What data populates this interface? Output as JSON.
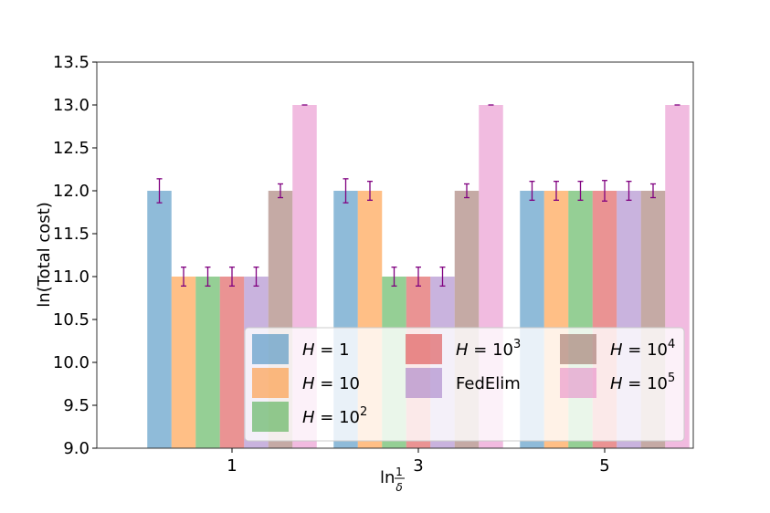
{
  "chart_data": {
    "type": "bar",
    "title": "",
    "xlabel": "ln 1/δ",
    "xlabel_parts": {
      "prefix": "ln",
      "numerator": "1",
      "denominator": "δ"
    },
    "ylabel": "ln(Total cost)",
    "ylim": [
      9.0,
      13.5
    ],
    "yticks": [
      "9.0",
      "9.5",
      "10.0",
      "10.5",
      "11.0",
      "11.5",
      "12.0",
      "12.5",
      "13.0",
      "13.5"
    ],
    "categories": [
      "1",
      "3",
      "5"
    ],
    "grid": false,
    "legend_position": "lower-right",
    "series": [
      {
        "name": "H = 1",
        "label_main": "H = 1",
        "label_exp": "",
        "color": "#1f77b4",
        "values": [
          12.0,
          12.0,
          12.0
        ],
        "errors": [
          0.14,
          0.14,
          0.11
        ]
      },
      {
        "name": "H = 10",
        "label_main": "H = 10",
        "label_exp": "",
        "color": "#ff7f0e",
        "values": [
          11.0,
          12.0,
          12.0
        ],
        "errors": [
          0.11,
          0.11,
          0.11
        ]
      },
      {
        "name": "H = 10^2",
        "label_main": "H = 10",
        "label_exp": "2",
        "color": "#2ca02c",
        "values": [
          11.0,
          11.0,
          12.0
        ],
        "errors": [
          0.11,
          0.11,
          0.11
        ]
      },
      {
        "name": "H = 10^3",
        "label_main": "H = 10",
        "label_exp": "3",
        "color": "#d62728",
        "values": [
          11.0,
          11.0,
          12.0
        ],
        "errors": [
          0.11,
          0.11,
          0.12
        ]
      },
      {
        "name": "FedElim",
        "label_main": "FedElim",
        "label_exp": "",
        "color": "#9467bd",
        "values": [
          11.0,
          11.0,
          12.0
        ],
        "errors": [
          0.11,
          0.11,
          0.11
        ]
      },
      {
        "name": "H = 10^4",
        "label_main": "H = 10",
        "label_exp": "4",
        "color": "#8c564b",
        "values": [
          12.0,
          12.0,
          12.0
        ],
        "errors": [
          0.08,
          0.08,
          0.08
        ]
      },
      {
        "name": "H = 10^5",
        "label_main": "H = 10",
        "label_exp": "5",
        "color": "#e377c2",
        "values": [
          13.0,
          13.0,
          13.0
        ],
        "errors": [
          0.0,
          0.0,
          0.0
        ]
      }
    ],
    "error_bar_color": "#800080"
  }
}
